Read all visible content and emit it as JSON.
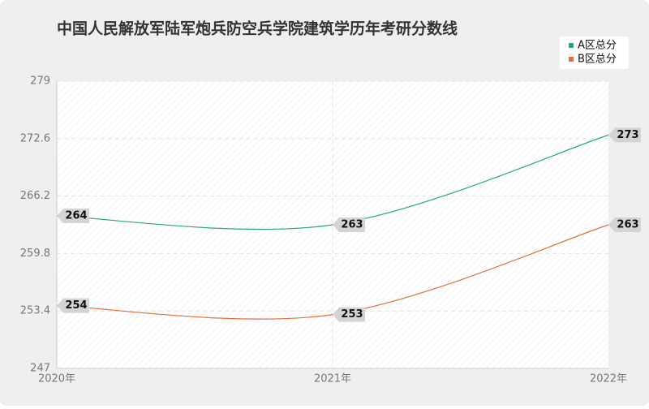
{
  "chart_data": {
    "type": "line",
    "title": "中国人民解放军陆军炮兵防空兵学院建筑学历年考研分数线",
    "categories": [
      "2020年",
      "2021年",
      "2022年"
    ],
    "series": [
      {
        "name": "A区总分",
        "color": "#2aa87c",
        "values": [
          264,
          263,
          273
        ]
      },
      {
        "name": "B区总分",
        "color": "#e2703e",
        "values": [
          254,
          253,
          263
        ]
      }
    ],
    "ylim": [
      247,
      279
    ],
    "yticks": [
      247,
      253.4,
      259.8,
      266.2,
      272.6,
      279
    ],
    "grid": true,
    "legend": "upper right"
  }
}
